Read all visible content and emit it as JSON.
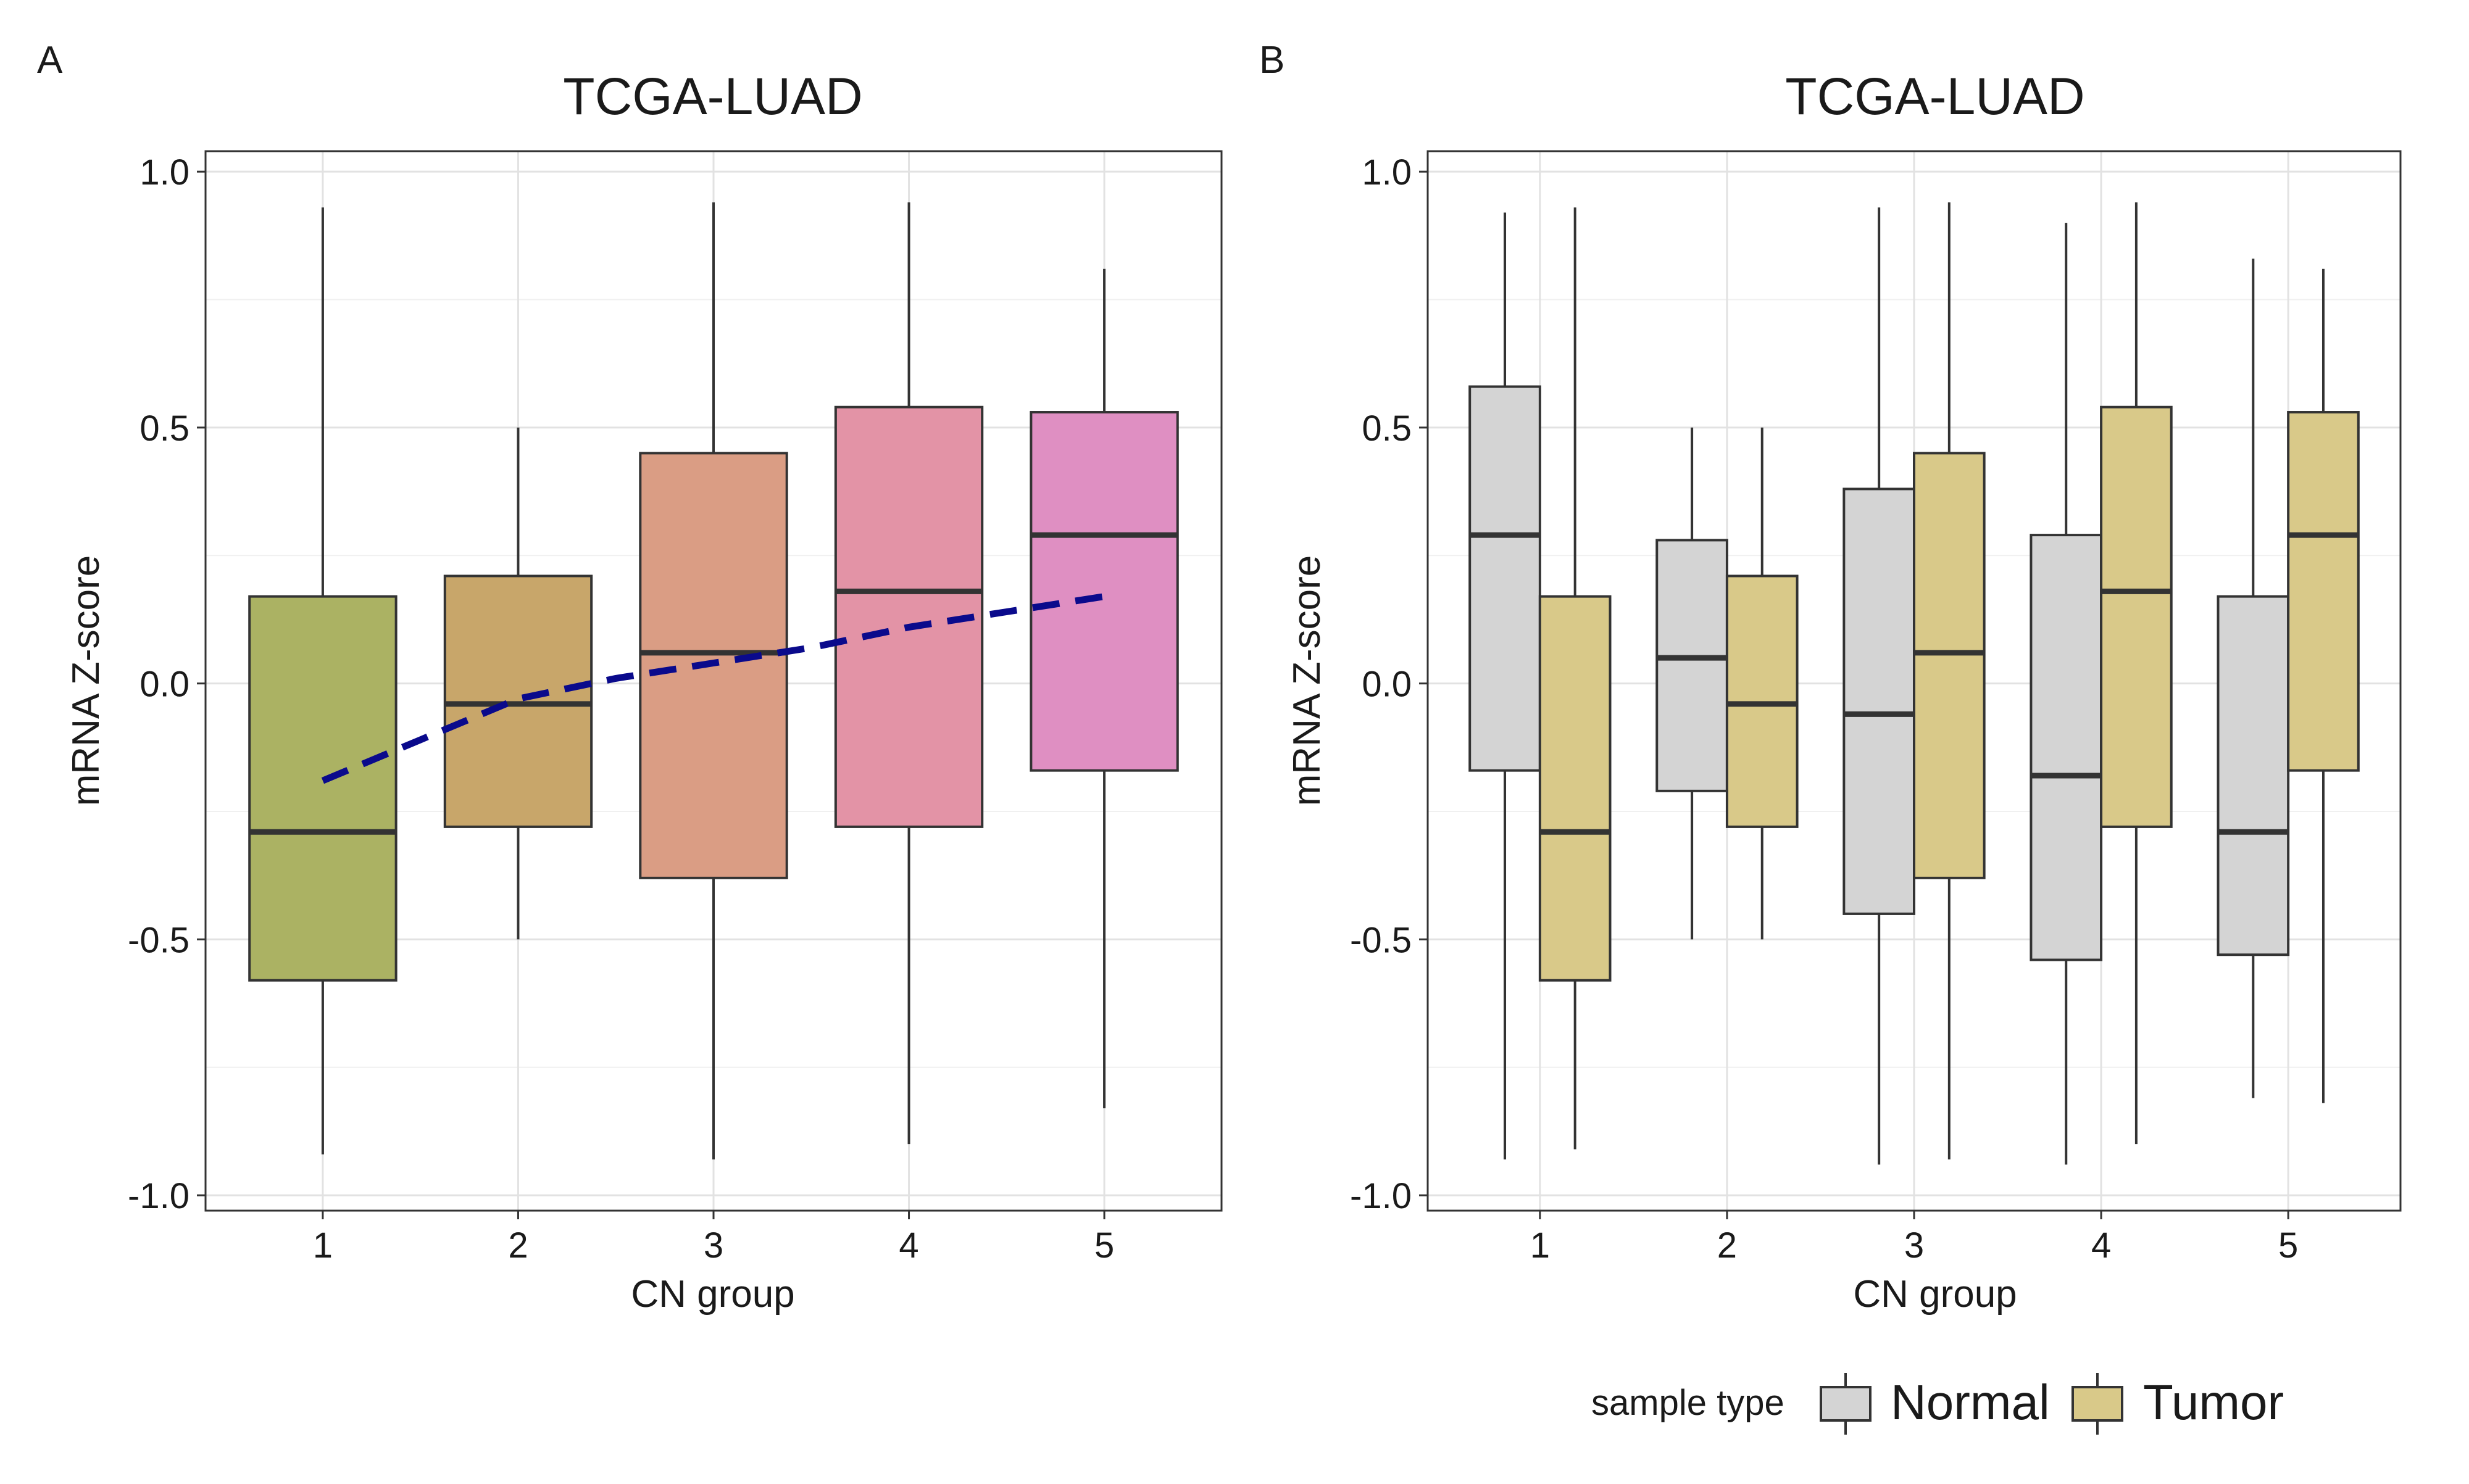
{
  "chart_data": [
    {
      "panel_label": "A",
      "type": "box",
      "title": "TCGA-LUAD",
      "xlabel": "CN group",
      "ylabel": "mRNA Z-score",
      "ylim": [
        -1.03,
        1.04
      ],
      "y_ticks": [
        -1.0,
        -0.5,
        0.0,
        0.5,
        1.0
      ],
      "y_tick_labels": [
        "-1.0",
        "-0.5",
        "0.0",
        "0.5",
        "1.0"
      ],
      "categories": [
        "1",
        "2",
        "3",
        "4",
        "5"
      ],
      "boxes": [
        {
          "category": "1",
          "min": -0.92,
          "q1": -0.58,
          "median": -0.29,
          "q3": 0.17,
          "max": 0.93,
          "color": "#abb263"
        },
        {
          "category": "2",
          "min": -0.5,
          "q1": -0.28,
          "median": -0.04,
          "q3": 0.21,
          "max": 0.5,
          "color": "#c8a66a"
        },
        {
          "category": "3",
          "min": -0.93,
          "q1": -0.38,
          "median": 0.06,
          "q3": 0.45,
          "max": 0.94,
          "color": "#da9d84"
        },
        {
          "category": "4",
          "min": -0.9,
          "q1": -0.28,
          "median": 0.18,
          "q3": 0.54,
          "max": 0.94,
          "color": "#e393a6"
        },
        {
          "category": "5",
          "min": -0.83,
          "q1": -0.17,
          "median": 0.29,
          "q3": 0.53,
          "max": 0.81,
          "color": "#df8fc2"
        }
      ],
      "trend_line": {
        "style": "dashed",
        "color": "#0a0a8c",
        "x": [
          1.0,
          1.5,
          2.0,
          2.5,
          3.0,
          3.5,
          4.0,
          4.5,
          5.0
        ],
        "y": [
          -0.19,
          -0.11,
          -0.03,
          0.01,
          0.04,
          0.07,
          0.11,
          0.14,
          0.17
        ]
      },
      "grid": true
    },
    {
      "panel_label": "B",
      "type": "box",
      "title": "TCGA-LUAD",
      "xlabel": "CN group",
      "ylabel": "mRNA Z-score",
      "ylim": [
        -1.03,
        1.04
      ],
      "y_ticks": [
        -1.0,
        -0.5,
        0.0,
        0.5,
        1.0
      ],
      "y_tick_labels": [
        "-1.0",
        "-0.5",
        "0.0",
        "0.5",
        "1.0"
      ],
      "categories": [
        "1",
        "2",
        "3",
        "4",
        "5"
      ],
      "legend": {
        "title": "sample type",
        "position": "bottom",
        "entries": [
          "Normal",
          "Tumor"
        ]
      },
      "series": [
        {
          "name": "Normal",
          "color": "#d4d4d4",
          "boxes": [
            {
              "category": "1",
              "min": -0.93,
              "q1": -0.17,
              "median": 0.29,
              "q3": 0.58,
              "max": 0.92
            },
            {
              "category": "2",
              "min": -0.5,
              "q1": -0.21,
              "median": 0.05,
              "q3": 0.28,
              "max": 0.5
            },
            {
              "category": "3",
              "min": -0.94,
              "q1": -0.45,
              "median": -0.06,
              "q3": 0.38,
              "max": 0.93
            },
            {
              "category": "4",
              "min": -0.94,
              "q1": -0.54,
              "median": -0.18,
              "q3": 0.29,
              "max": 0.9
            },
            {
              "category": "5",
              "min": -0.81,
              "q1": -0.53,
              "median": -0.29,
              "q3": 0.17,
              "max": 0.83
            }
          ]
        },
        {
          "name": "Tumor",
          "color": "#d9c989",
          "boxes": [
            {
              "category": "1",
              "min": -0.91,
              "q1": -0.58,
              "median": -0.29,
              "q3": 0.17,
              "max": 0.93
            },
            {
              "category": "2",
              "min": -0.5,
              "q1": -0.28,
              "median": -0.04,
              "q3": 0.21,
              "max": 0.5
            },
            {
              "category": "3",
              "min": -0.93,
              "q1": -0.38,
              "median": 0.06,
              "q3": 0.45,
              "max": 0.94
            },
            {
              "category": "4",
              "min": -0.9,
              "q1": -0.28,
              "median": 0.18,
              "q3": 0.54,
              "max": 0.94
            },
            {
              "category": "5",
              "min": -0.82,
              "q1": -0.17,
              "median": 0.29,
              "q3": 0.53,
              "max": 0.81
            }
          ]
        }
      ],
      "grid": true
    }
  ]
}
